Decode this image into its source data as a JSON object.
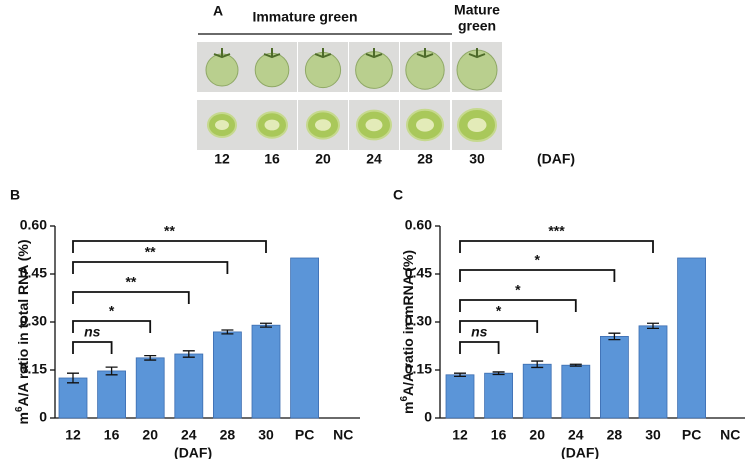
{
  "panel_a": {
    "letter": "A",
    "immature_label": "Immature green",
    "mature_label": [
      "Mature",
      "green"
    ],
    "days": [
      "12",
      "16",
      "20",
      "24",
      "28",
      "30"
    ],
    "unit": "(DAF)"
  },
  "chart_data": [
    {
      "type": "bar",
      "letter": "B",
      "ylabel": [
        "m",
        "6",
        "A/A ratio in total RNA (%)"
      ],
      "xlabel": "(DAF)",
      "categories": [
        "12",
        "16",
        "20",
        "24",
        "28",
        "30",
        "PC",
        "NC"
      ],
      "values": [
        0.125,
        0.147,
        0.188,
        0.2,
        0.269,
        0.29,
        0.5,
        0
      ],
      "errors": [
        0.015,
        0.012,
        0.007,
        0.01,
        0.006,
        0.006,
        null,
        null
      ],
      "significance": [
        null,
        "ns",
        "*",
        "**",
        "**",
        "**",
        null,
        null
      ],
      "color": "#5b95d8",
      "ylim": [
        0,
        0.6
      ],
      "yticks": [
        0,
        0.15,
        {
          "value": 0.3,
          "label": "0.30"
        },
        0.45,
        {
          "value": 0.6,
          "label": "0.60"
        }
      ]
    },
    {
      "type": "bar",
      "letter": "C",
      "ylabel": [
        "m",
        "6",
        "A/A ratio in  mRNA (%)"
      ],
      "xlabel": "(DAF)",
      "categories": [
        "12",
        "16",
        "20",
        "24",
        "28",
        "30",
        "PC",
        "NC"
      ],
      "values": [
        0.135,
        0.14,
        0.168,
        0.165,
        0.255,
        0.288,
        0.5,
        0
      ],
      "errors": [
        0.005,
        0.004,
        0.01,
        0.003,
        0.01,
        0.008,
        null,
        null
      ],
      "significance": [
        null,
        "ns",
        "*",
        "*",
        "*",
        "***",
        null,
        null
      ],
      "color": "#5b95d8",
      "ylim": [
        0,
        0.6
      ],
      "yticks": [
        0,
        0.15,
        {
          "value": 0.3,
          "label": "0.30"
        },
        0.45,
        {
          "value": 0.6,
          "label": "0.60"
        }
      ]
    }
  ]
}
